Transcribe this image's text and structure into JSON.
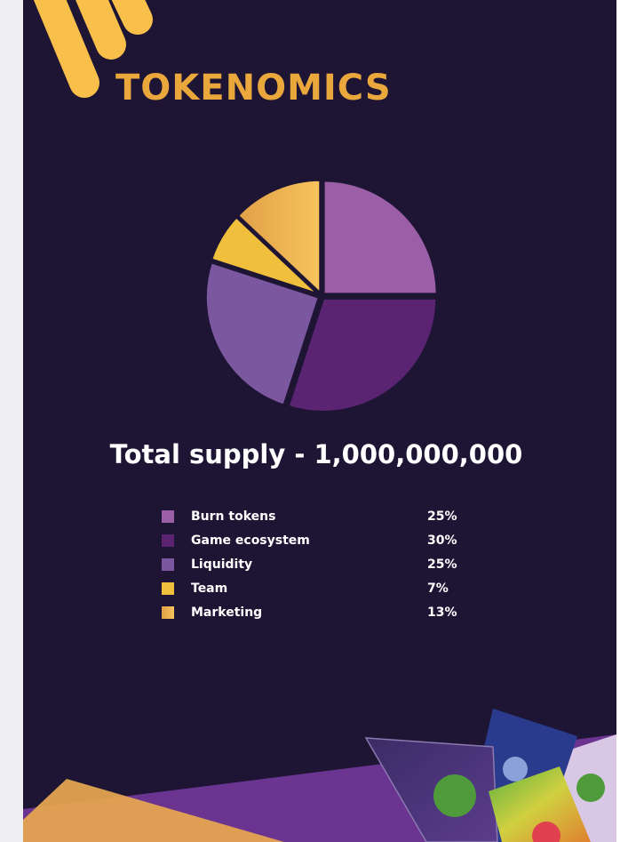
{
  "header": {
    "title": "TOKENOMICS"
  },
  "supply": "Total supply - 1,000,000,000",
  "chart_data": {
    "type": "pie",
    "categories": [
      "Burn tokens",
      "Game ecosystem",
      "Liquidity",
      "Team",
      "Marketing"
    ],
    "values": [
      25,
      30,
      25,
      7,
      13
    ],
    "value_labels": [
      "25%",
      "30%",
      "25%",
      "7%",
      "13%"
    ],
    "colors": [
      "#9b5fa8",
      "#5a2472",
      "#7b579f",
      "#f0c03c",
      "#eeaa50"
    ]
  }
}
